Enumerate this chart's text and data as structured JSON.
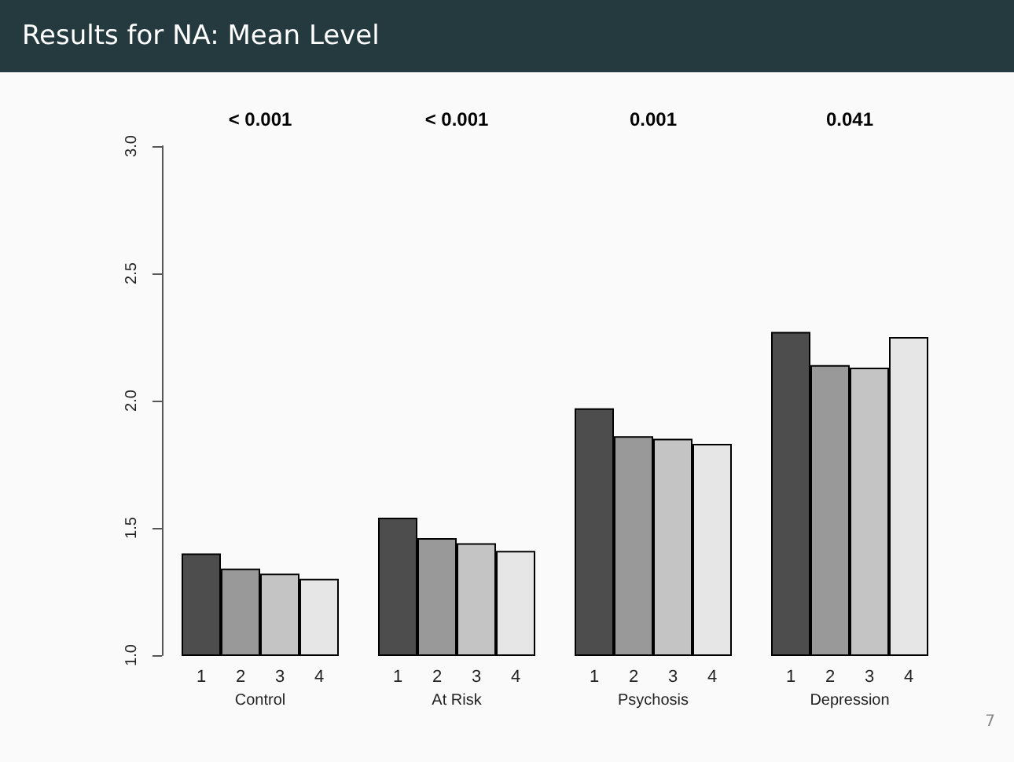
{
  "chart_data": {
    "type": "bar",
    "title": "Results for NA: Mean Level",
    "categories": [
      "Control",
      "At Risk",
      "Psychosis",
      "Depression"
    ],
    "series": [
      {
        "name": "1",
        "color": "#4d4d4d",
        "values": [
          1.4,
          1.54,
          1.97,
          2.27
        ]
      },
      {
        "name": "2",
        "color": "#999999",
        "values": [
          1.34,
          1.46,
          1.86,
          2.14
        ]
      },
      {
        "name": "3",
        "color": "#c4c4c4",
        "values": [
          1.32,
          1.44,
          1.85,
          2.13
        ]
      },
      {
        "name": "4",
        "color": "#e6e6e6",
        "values": [
          1.3,
          1.41,
          1.83,
          2.25
        ]
      }
    ],
    "ylim": [
      1.0,
      3.0
    ],
    "yticks": [
      {
        "value": 1,
        "label": "1.0"
      },
      {
        "value": 1.5,
        "label": "1.5"
      },
      {
        "value": 2,
        "label": "2.0"
      },
      {
        "value": 2.5,
        "label": "2.5"
      },
      {
        "value": 3,
        "label": "3.0"
      }
    ],
    "annotations": [
      "< 0.001",
      "< 0.001",
      "0.001",
      "0.041",
      "7"
    ],
    "grid": false
  }
}
